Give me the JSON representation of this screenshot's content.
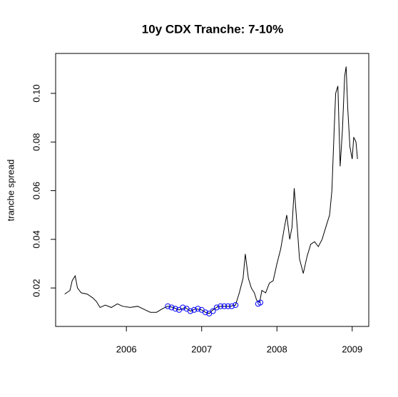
{
  "chart_data": {
    "type": "line",
    "title": "10y CDX Tranche: 7-10%",
    "y_label": "tranche spread",
    "xlim": [
      2005.06,
      2009.22
    ],
    "xticks": [
      2006,
      2007,
      2008,
      2009
    ],
    "ylim": [
      0.0042,
      0.1164
    ],
    "yticks": [
      0.02,
      0.04,
      0.06,
      0.08,
      {
        "value": 0.1,
        "label": "0.10"
      }
    ],
    "series": [
      {
        "marker": "line",
        "color": "#000000",
        "x": [
          2005.18,
          2005.25,
          2005.28,
          2005.32,
          2005.35,
          2005.4,
          2005.48,
          2005.55,
          2005.6,
          2005.65,
          2005.72,
          2005.8,
          2005.88,
          2005.95,
          2006.05,
          2006.15,
          2006.25,
          2006.32,
          2006.4,
          2006.48,
          2006.55,
          2006.62,
          2006.7,
          2006.78,
          2006.85,
          2006.92,
          2007.0,
          2007.05,
          2007.1,
          2007.15,
          2007.22,
          2007.3,
          2007.38,
          2007.45,
          2007.5,
          2007.55,
          2007.58,
          2007.62,
          2007.66,
          2007.7,
          2007.73,
          2007.77,
          2007.8,
          2007.85,
          2007.9,
          2007.95,
          2008.0,
          2008.05,
          2008.1,
          2008.13,
          2008.17,
          2008.2,
          2008.23,
          2008.27,
          2008.3,
          2008.35,
          2008.4,
          2008.45,
          2008.5,
          2008.55,
          2008.6,
          2008.65,
          2008.7,
          2008.73,
          2008.76,
          2008.78,
          2008.81,
          2008.84,
          2008.87,
          2008.9,
          2008.92,
          2008.94,
          2008.97,
          2009.0,
          2009.02,
          2009.05,
          2009.07
        ],
        "values": [
          0.0175,
          0.019,
          0.023,
          0.025,
          0.02,
          0.018,
          0.0175,
          0.016,
          0.0145,
          0.012,
          0.013,
          0.012,
          0.0135,
          0.0125,
          0.012,
          0.0125,
          0.011,
          0.01,
          0.01,
          0.0115,
          0.0125,
          0.012,
          0.011,
          0.012,
          0.0105,
          0.0115,
          0.011,
          0.01,
          0.0095,
          0.011,
          0.0125,
          0.0125,
          0.0125,
          0.013,
          0.018,
          0.024,
          0.034,
          0.024,
          0.02,
          0.018,
          0.015,
          0.014,
          0.019,
          0.018,
          0.022,
          0.023,
          0.03,
          0.036,
          0.045,
          0.05,
          0.04,
          0.045,
          0.061,
          0.045,
          0.032,
          0.026,
          0.033,
          0.038,
          0.039,
          0.037,
          0.04,
          0.045,
          0.05,
          0.06,
          0.085,
          0.1,
          0.103,
          0.07,
          0.085,
          0.107,
          0.111,
          0.094,
          0.078,
          0.073,
          0.082,
          0.08,
          0.073
        ]
      },
      {
        "marker": "circle",
        "color": "#0000ff",
        "x": [
          2006.55,
          2006.6,
          2006.65,
          2006.7,
          2006.75,
          2006.8,
          2006.85,
          2006.9,
          2006.95,
          2007.0,
          2007.05,
          2007.1,
          2007.15,
          2007.2,
          2007.25,
          2007.3,
          2007.35,
          2007.4,
          2007.45,
          2007.75,
          2007.78
        ],
        "values": [
          0.0125,
          0.012,
          0.0115,
          0.011,
          0.012,
          0.0115,
          0.0105,
          0.011,
          0.0115,
          0.011,
          0.01,
          0.0095,
          0.0105,
          0.012,
          0.0125,
          0.0125,
          0.0125,
          0.0125,
          0.013,
          0.0135,
          0.014
        ]
      }
    ]
  }
}
